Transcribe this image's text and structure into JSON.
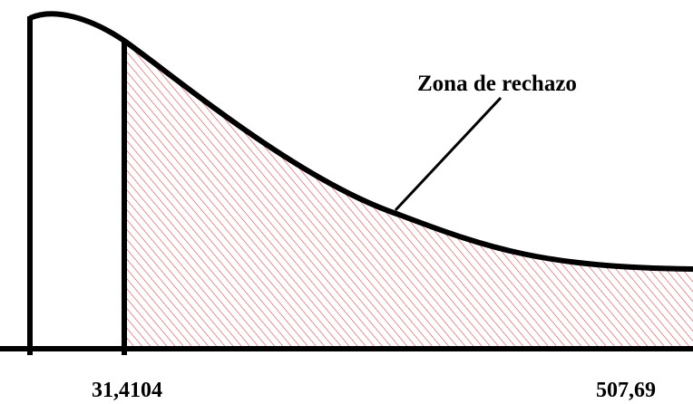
{
  "annotation": "Zona de rechazo",
  "axis_labels": [
    "31,4104",
    "507,69"
  ]
}
